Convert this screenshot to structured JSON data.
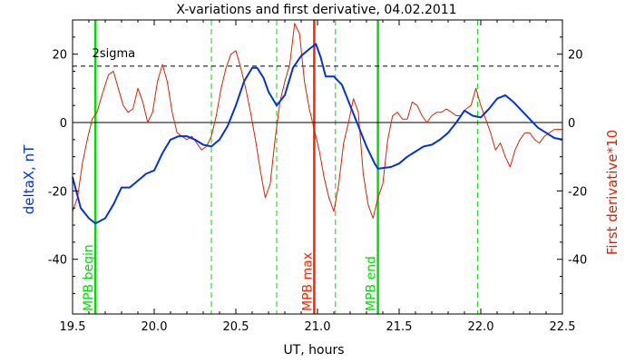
{
  "chart_data": {
    "type": "line",
    "title": "X-variations and first derivative, 04.02.2011",
    "xlabel": "UT, hours",
    "ylabel_left": "deltaX, nT",
    "ylabel_right": "First derivative*10",
    "xlim": [
      19.5,
      22.5
    ],
    "ylim": [
      -56,
      30
    ],
    "x_ticks": [
      19.5,
      20.0,
      20.5,
      21.0,
      21.5,
      22.0,
      22.5
    ],
    "x_tick_labels": [
      "19.5",
      "20.0",
      "20.5",
      "21.0",
      "21.5",
      "22.0",
      "22.5"
    ],
    "y_ticks": [
      20,
      0,
      -20,
      -40
    ],
    "y_tick_labels": [
      "20",
      "0",
      "-20",
      "-40"
    ],
    "colors": {
      "series_deltaX": "#0033dd",
      "series_derivative": "#dd2200",
      "mpb_lines": "#00dd00",
      "max_line": "#ff2200",
      "zero_line": "#000000",
      "sigma_line": "#000000"
    },
    "sigma_label": "2sigma",
    "sigma_level": 16.5,
    "zero_level": 0,
    "vertical_markers": [
      {
        "x": 19.64,
        "label": "MPB begin",
        "color": "#00dd00",
        "style": "solid"
      },
      {
        "x": 20.98,
        "label": "MPB max",
        "color": "#ff2200",
        "style": "solid"
      },
      {
        "x": 21.37,
        "label": "MPB end",
        "color": "#00dd00",
        "style": "solid"
      },
      {
        "x": 20.35,
        "label": "",
        "color": "#00dd00",
        "style": "dashed"
      },
      {
        "x": 20.75,
        "label": "",
        "color": "#00dd00",
        "style": "dashed"
      },
      {
        "x": 21.11,
        "label": "",
        "color": "#00dd00",
        "style": "dashed"
      },
      {
        "x": 21.98,
        "label": "",
        "color": "#00dd00",
        "style": "dashed"
      }
    ],
    "series": [
      {
        "key": "deltaX",
        "color": "#0033dd",
        "x": [
          19.5,
          19.55,
          19.6,
          19.64,
          19.7,
          19.75,
          19.8,
          19.85,
          19.9,
          19.95,
          20.0,
          20.05,
          20.1,
          20.15,
          20.2,
          20.25,
          20.3,
          20.35,
          20.4,
          20.45,
          20.5,
          20.55,
          20.6,
          20.63,
          20.67,
          20.7,
          20.75,
          20.8,
          20.85,
          20.9,
          20.95,
          20.99,
          21.02,
          21.05,
          21.1,
          21.15,
          21.2,
          21.25,
          21.3,
          21.35,
          21.37,
          21.45,
          21.5,
          21.55,
          21.6,
          21.65,
          21.7,
          21.75,
          21.8,
          21.85,
          21.9,
          21.95,
          22.0,
          22.05,
          22.1,
          22.15,
          22.2,
          22.25,
          22.3,
          22.35,
          22.4,
          22.45,
          22.5
        ],
        "values": [
          -16,
          -25,
          -28,
          -29.5,
          -28,
          -24,
          -19,
          -19,
          -17,
          -15,
          -14,
          -9,
          -5,
          -4,
          -4,
          -5,
          -6.5,
          -7,
          -5,
          -1,
          5,
          12,
          16,
          16,
          13,
          9,
          5,
          8,
          16,
          19.5,
          21.5,
          23,
          19,
          13.5,
          13.5,
          11,
          5,
          -1,
          -7,
          -12,
          -13.5,
          -13,
          -12,
          -10,
          -8.5,
          -7,
          -6.5,
          -5,
          -3,
          0,
          3.5,
          2,
          1.5,
          4,
          7,
          8,
          6,
          3.5,
          1,
          -1.5,
          -3,
          -4.5,
          -5
        ]
      },
      {
        "key": "derivative",
        "color": "#dd2200",
        "x": [
          19.5,
          19.53,
          19.56,
          19.59,
          19.62,
          19.65,
          19.68,
          19.72,
          19.75,
          19.78,
          19.81,
          19.84,
          19.87,
          19.9,
          19.93,
          19.96,
          19.99,
          20.02,
          20.05,
          20.08,
          20.11,
          20.14,
          20.17,
          20.2,
          20.23,
          20.26,
          20.29,
          20.32,
          20.35,
          20.38,
          20.41,
          20.44,
          20.47,
          20.5,
          20.53,
          20.56,
          20.59,
          20.62,
          20.65,
          20.68,
          20.71,
          20.74,
          20.77,
          20.8,
          20.83,
          20.86,
          20.89,
          20.92,
          20.95,
          20.98,
          21.01,
          21.04,
          21.07,
          21.1,
          21.13,
          21.16,
          21.19,
          21.22,
          21.25,
          21.28,
          21.31,
          21.34,
          21.37,
          21.4,
          21.43,
          21.46,
          21.49,
          21.52,
          21.55,
          21.58,
          21.61,
          21.64,
          21.67,
          21.7,
          21.73,
          21.76,
          21.79,
          21.82,
          21.85,
          21.88,
          21.91,
          21.94,
          21.97,
          22.0,
          22.03,
          22.06,
          22.09,
          22.12,
          22.15,
          22.18,
          22.21,
          22.24,
          22.27,
          22.3,
          22.33,
          22.36,
          22.39,
          22.42,
          22.45,
          22.48,
          22.5
        ],
        "values": [
          -26,
          -22,
          -12,
          -5,
          1,
          3,
          8,
          14,
          15,
          10,
          5,
          3,
          4,
          10,
          6,
          0,
          3,
          12,
          17,
          12,
          3,
          -3,
          -4,
          -5,
          -4,
          -6,
          -8,
          -7,
          -4,
          2,
          10,
          16,
          20,
          21,
          16,
          10,
          3,
          -5,
          -14,
          -22,
          -18,
          -5,
          6,
          12,
          17,
          29,
          26,
          12,
          4,
          -2,
          -8,
          -16,
          -22,
          -26,
          -18,
          -6,
          0,
          7,
          3,
          -15,
          -24,
          -28,
          -22,
          -18,
          -5,
          2,
          3,
          1,
          1,
          6,
          5,
          2,
          0,
          2,
          3,
          3,
          4,
          3,
          2,
          2,
          4,
          5,
          10,
          5,
          1,
          -3,
          -8,
          -6,
          -10,
          -13,
          -8,
          -5,
          -3,
          -3,
          -5,
          -6,
          -4,
          -3,
          -2,
          -2,
          -2
        ]
      }
    ]
  }
}
